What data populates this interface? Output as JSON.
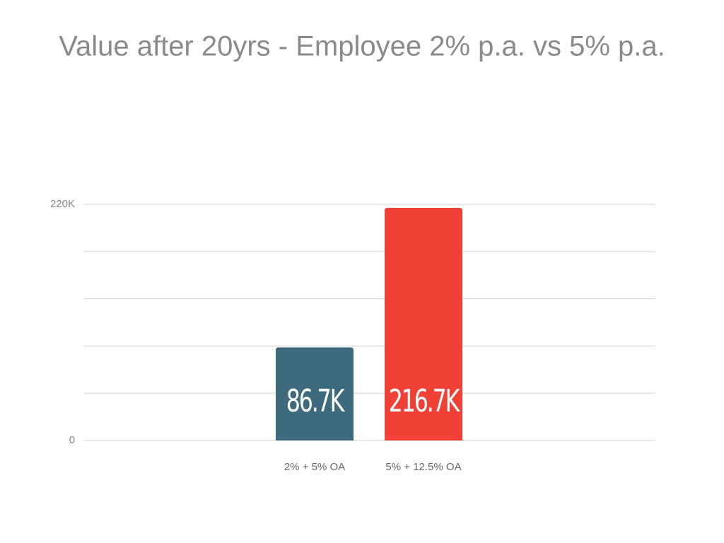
{
  "chart_data": {
    "type": "bar",
    "title": "Value after 20yrs - Employee 2% p.a. vs 5% p.a.",
    "categories": [
      "2% + 5% OA",
      "5% + 12.5% OA"
    ],
    "values": [
      86700,
      216700
    ],
    "value_labels": [
      "86.7K",
      "216.7K"
    ],
    "colors": [
      "#3d6a7d",
      "#ef4136"
    ],
    "ylim": [
      0,
      220000
    ],
    "yticks": [
      0,
      {
        "value": 44000,
        "label": null
      },
      {
        "value": 88000,
        "label": null
      },
      {
        "value": 132000,
        "label": null
      },
      {
        "value": 176000,
        "label": null
      },
      {
        "value": 220000,
        "label": "220K"
      }
    ],
    "grid": true
  }
}
